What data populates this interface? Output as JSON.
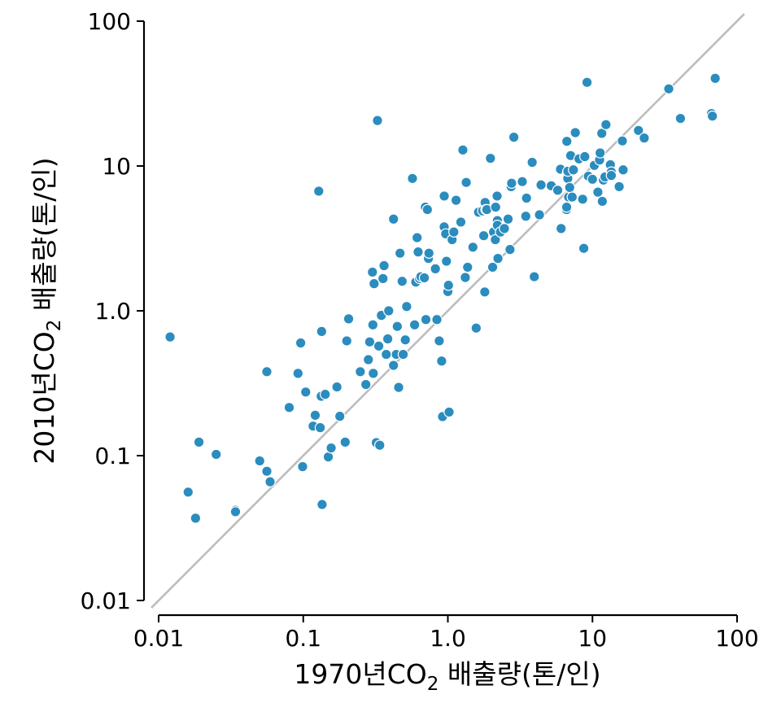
{
  "chart_data": {
    "type": "scatter",
    "title": "",
    "xlabel": {
      "pre": "1970년CO",
      "sub": "2",
      "post": " 배출량(톤/인)"
    },
    "ylabel": {
      "pre": "2010년CO",
      "sub": "2",
      "post": " 배출량(톤/인)"
    },
    "x_scale": "log",
    "y_scale": "log",
    "xlim": [
      0.01,
      100
    ],
    "ylim": [
      0.01,
      100
    ],
    "grid": false,
    "point_color": "#2b8cbe",
    "reference_line": {
      "description": "y = x",
      "color": "#bdbdbd"
    },
    "xticks": [
      0.01,
      0.1,
      1,
      10,
      100
    ],
    "xtick_labels": [
      "0.01",
      "0.1",
      "1.0",
      "10",
      "100"
    ],
    "yticks": [
      0.01,
      0.1,
      1,
      10,
      100
    ],
    "ytick_labels": [
      "0.01",
      "0.1",
      "1.0",
      "10",
      "100"
    ],
    "points": [
      [
        0.012,
        0.66
      ],
      [
        0.016,
        0.056
      ],
      [
        0.018,
        0.037
      ],
      [
        0.019,
        0.124
      ],
      [
        0.025,
        0.102
      ],
      [
        0.034,
        0.042
      ],
      [
        0.034,
        0.041
      ],
      [
        0.05,
        0.092
      ],
      [
        0.056,
        0.078
      ],
      [
        0.056,
        0.38
      ],
      [
        0.059,
        0.066
      ],
      [
        0.08,
        0.215
      ],
      [
        0.092,
        0.37
      ],
      [
        0.096,
        0.6
      ],
      [
        0.099,
        0.084
      ],
      [
        0.104,
        0.275
      ],
      [
        0.117,
        0.16
      ],
      [
        0.121,
        0.19
      ],
      [
        0.128,
        6.7
      ],
      [
        0.131,
        0.156
      ],
      [
        0.133,
        0.257
      ],
      [
        0.134,
        0.72
      ],
      [
        0.135,
        0.046
      ],
      [
        0.142,
        0.265
      ],
      [
        0.149,
        0.098
      ],
      [
        0.156,
        0.113
      ],
      [
        0.171,
        0.298
      ],
      [
        0.179,
        0.187
      ],
      [
        0.195,
        0.124
      ],
      [
        0.2,
        0.62
      ],
      [
        0.206,
        0.88
      ],
      [
        0.248,
        0.38
      ],
      [
        0.271,
        0.31
      ],
      [
        0.282,
        0.46
      ],
      [
        0.288,
        0.61
      ],
      [
        0.301,
        1.85
      ],
      [
        0.303,
        0.8
      ],
      [
        0.305,
        0.37
      ],
      [
        0.309,
        1.54
      ],
      [
        0.32,
        0.123
      ],
      [
        0.326,
        20.6
      ],
      [
        0.333,
        0.571
      ],
      [
        0.338,
        0.118
      ],
      [
        0.347,
        0.93
      ],
      [
        0.356,
        1.67
      ],
      [
        0.362,
        2.05
      ],
      [
        0.375,
        0.5
      ],
      [
        0.384,
        0.64
      ],
      [
        0.39,
        1.0
      ],
      [
        0.421,
        4.3
      ],
      [
        0.421,
        0.42
      ],
      [
        0.44,
        0.5
      ],
      [
        0.447,
        0.78
      ],
      [
        0.457,
        0.296
      ],
      [
        0.467,
        2.5
      ],
      [
        0.483,
        1.6
      ],
      [
        0.491,
        0.5
      ],
      [
        0.508,
        0.63
      ],
      [
        0.519,
        1.07
      ],
      [
        0.569,
        8.2
      ],
      [
        0.589,
        0.8
      ],
      [
        0.6,
        1.58
      ],
      [
        0.613,
        3.2
      ],
      [
        0.623,
        2.55
      ],
      [
        0.637,
        1.67
      ],
      [
        0.651,
        1.72
      ],
      [
        0.688,
        1.69
      ],
      [
        0.699,
        5.2
      ],
      [
        0.705,
        0.87
      ],
      [
        0.722,
        5.0
      ],
      [
        0.734,
        2.3
      ],
      [
        0.74,
        2.5
      ],
      [
        0.82,
        1.95
      ],
      [
        0.84,
        0.87
      ],
      [
        0.872,
        0.62
      ],
      [
        0.906,
        0.45
      ],
      [
        0.919,
        0.186
      ],
      [
        0.943,
        3.8
      ],
      [
        0.944,
        6.2
      ],
      [
        0.966,
        3.4
      ],
      [
        0.978,
        2.2
      ],
      [
        1.0,
        1.36
      ],
      [
        1.01,
        1.5
      ],
      [
        1.02,
        0.2
      ],
      [
        1.07,
        3.1
      ],
      [
        1.1,
        3.5
      ],
      [
        1.14,
        5.8
      ],
      [
        1.23,
        4.1
      ],
      [
        1.27,
        12.9
      ],
      [
        1.32,
        1.7
      ],
      [
        1.34,
        7.7
      ],
      [
        1.37,
        2.0
      ],
      [
        1.49,
        2.75
      ],
      [
        1.57,
        0.76
      ],
      [
        1.63,
        4.8
      ],
      [
        1.74,
        4.9
      ],
      [
        1.77,
        3.3
      ],
      [
        1.8,
        1.35
      ],
      [
        1.81,
        5.6
      ],
      [
        1.83,
        5.0
      ],
      [
        1.86,
        5.0
      ],
      [
        1.97,
        11.3
      ],
      [
        2.04,
        2.0
      ],
      [
        2.07,
        3.5
      ],
      [
        2.13,
        3.1
      ],
      [
        2.14,
        5.2
      ],
      [
        2.19,
        6.2
      ],
      [
        2.2,
        4.2
      ],
      [
        2.2,
        3.9
      ],
      [
        2.22,
        2.3
      ],
      [
        2.31,
        3.5
      ],
      [
        2.46,
        3.7
      ],
      [
        2.61,
        4.3
      ],
      [
        2.69,
        2.65
      ],
      [
        2.74,
        7.2
      ],
      [
        2.76,
        7.6
      ],
      [
        2.86,
        15.8
      ],
      [
        3.27,
        7.8
      ],
      [
        3.46,
        4.5
      ],
      [
        3.5,
        6.0
      ],
      [
        3.83,
        10.6
      ],
      [
        3.96,
        1.72
      ],
      [
        4.3,
        4.6
      ],
      [
        4.41,
        7.4
      ],
      [
        5.19,
        7.3
      ],
      [
        5.75,
        6.8
      ],
      [
        6.01,
        9.5
      ],
      [
        6.07,
        3.7
      ],
      [
        6.62,
        5.0
      ],
      [
        6.63,
        5.2
      ],
      [
        6.65,
        14.8
      ],
      [
        6.71,
        9.0
      ],
      [
        6.75,
        8.2
      ],
      [
        6.76,
        9.2
      ],
      [
        6.84,
        6.1
      ],
      [
        6.96,
        7.1
      ],
      [
        7.07,
        11.8
      ],
      [
        7.24,
        6.1
      ],
      [
        7.38,
        9.4
      ],
      [
        7.61,
        17.0
      ],
      [
        8.07,
        11.2
      ],
      [
        8.55,
        5.9
      ],
      [
        8.85,
        11.6
      ],
      [
        8.71,
        2.7
      ],
      [
        9.17,
        37.8
      ],
      [
        9.37,
        8.5
      ],
      [
        10.0,
        8.1
      ],
      [
        10.3,
        10.1
      ],
      [
        10.9,
        6.6
      ],
      [
        11.2,
        11.0
      ],
      [
        11.3,
        12.3
      ],
      [
        11.6,
        16.8
      ],
      [
        11.7,
        5.7
      ],
      [
        11.9,
        8.0
      ],
      [
        12.2,
        8.4
      ],
      [
        12.4,
        19.3
      ],
      [
        13.3,
        10.2
      ],
      [
        13.5,
        9.1
      ],
      [
        13.5,
        8.6
      ],
      [
        15.3,
        7.2
      ],
      [
        16.1,
        14.9
      ],
      [
        16.3,
        9.4
      ],
      [
        20.8,
        17.6
      ],
      [
        22.8,
        15.6
      ],
      [
        33.7,
        34.1
      ],
      [
        40.6,
        21.3
      ],
      [
        66.2,
        22.4
      ],
      [
        66.5,
        23.0
      ],
      [
        67.5,
        22.1
      ],
      [
        70.6,
        40.3
      ]
    ]
  }
}
